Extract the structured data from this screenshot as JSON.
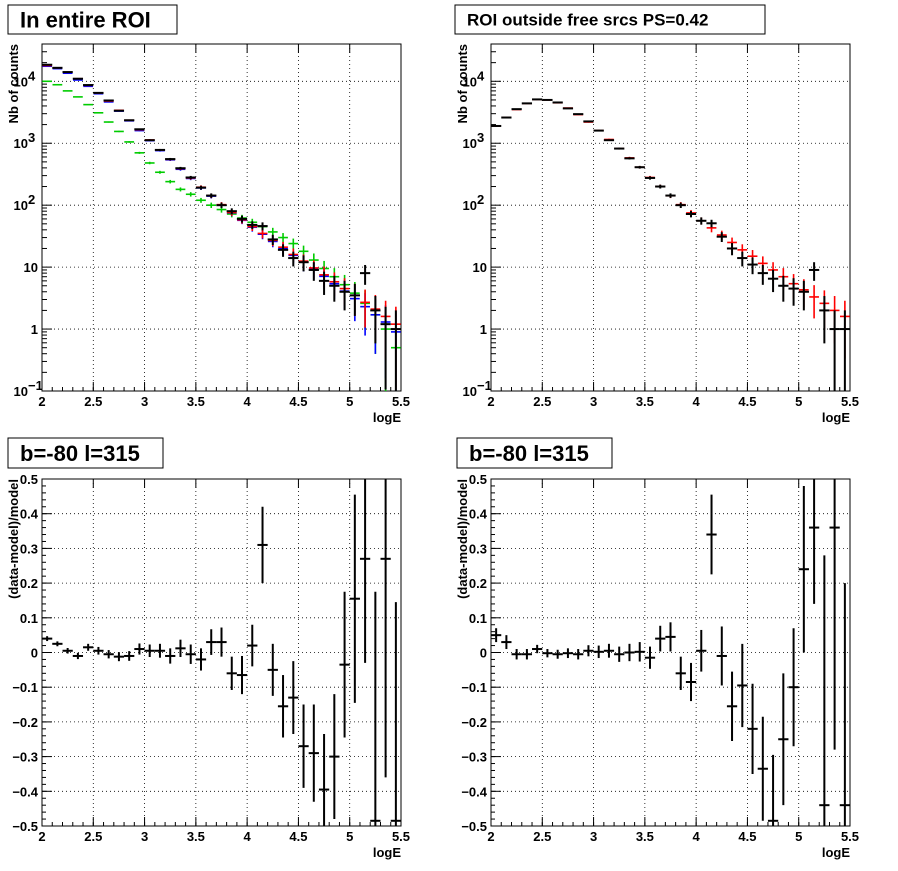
{
  "chart_data": [
    {
      "id": "roi-full",
      "type": "histogram-errorbars",
      "title": "In entire ROI",
      "xlabel": "logE",
      "ylabel": "Nb of counts",
      "xlim": [
        2,
        5.5
      ],
      "ylim": [
        0.1,
        40000
      ],
      "yscale": "log",
      "grid": true,
      "x_ticks": [
        "2",
        "2.5",
        "3",
        "3.5",
        "4",
        "4.5",
        "5",
        "5.5"
      ],
      "y_ticks": [
        {
          "v": 0.1,
          "label": "10",
          "exp": "−1"
        },
        {
          "v": 1,
          "label": "1",
          "exp": ""
        },
        {
          "v": 10,
          "label": "10",
          "exp": ""
        },
        {
          "v": 100,
          "label": "10",
          "exp": "2"
        },
        {
          "v": 1000,
          "label": "10",
          "exp": "3"
        },
        {
          "v": 10000,
          "label": "10",
          "exp": "4"
        }
      ],
      "x": [
        2.05,
        2.15,
        2.25,
        2.35,
        2.45,
        2.55,
        2.65,
        2.75,
        2.85,
        2.95,
        3.05,
        3.15,
        3.25,
        3.35,
        3.45,
        3.55,
        3.65,
        3.75,
        3.85,
        3.95,
        4.05,
        4.15,
        4.25,
        4.35,
        4.45,
        4.55,
        4.65,
        4.75,
        4.85,
        4.95,
        5.05,
        5.15,
        5.25,
        5.35,
        5.45
      ],
      "series": [
        {
          "color": "#00cc00",
          "style": "marker",
          "values": [
            10000,
            8800,
            7000,
            5600,
            4200,
            3100,
            2200,
            1550,
            1050,
            700,
            480,
            340,
            240,
            180,
            150,
            120,
            100,
            85,
            72,
            62,
            53,
            45,
            37,
            30,
            24,
            18,
            13,
            9.5,
            7,
            5.2,
            3.8,
            2.6,
            1.7,
            1.0,
            0.5
          ]
        },
        {
          "color": "#0000ff",
          "style": "marker",
          "values": [
            17500,
            16000,
            13500,
            10500,
            8300,
            6300,
            4650,
            3300,
            2300,
            1600,
            1100,
            760,
            540,
            380,
            270,
            190,
            140,
            100,
            75,
            57,
            44,
            34,
            26,
            20,
            15.5,
            12,
            9.3,
            7.1,
            5.4,
            4.1,
            3.1,
            2.3,
            1.7,
            1.3,
            0.9
          ]
        },
        {
          "color": "#ff0000",
          "style": "marker",
          "values": [
            18000,
            16500,
            14000,
            11000,
            8600,
            6500,
            4800,
            3400,
            2350,
            1650,
            1130,
            780,
            550,
            390,
            275,
            195,
            142,
            102,
            76,
            58,
            45,
            35,
            27,
            21,
            16,
            12.5,
            9.7,
            7.5,
            5.8,
            4.5,
            3.5,
            2.7,
            2.1,
            1.6,
            1.2
          ]
        },
        {
          "color": "#000000",
          "style": "points",
          "values": [
            18500,
            16500,
            14100,
            11000,
            8700,
            6500,
            4900,
            3350,
            2350,
            1680,
            1120,
            780,
            555,
            395,
            280,
            192,
            143,
            100,
            80,
            60,
            48,
            46,
            28,
            19,
            14,
            12,
            9,
            6,
            5,
            4,
            3.5,
            8,
            2,
            1.2,
            1.0
          ]
        }
      ]
    },
    {
      "id": "roi-outside",
      "type": "histogram-errorbars",
      "title": "ROI outside free srcs PS=0.42",
      "xlabel": "logE",
      "ylabel": "Nb of counts",
      "xlim": [
        2,
        5.5
      ],
      "ylim": [
        0.1,
        40000
      ],
      "yscale": "log",
      "grid": true,
      "x_ticks": [
        "2",
        "2.5",
        "3",
        "3.5",
        "4",
        "4.5",
        "5",
        "5.5"
      ],
      "y_ticks": [
        {
          "v": 0.1,
          "label": "10",
          "exp": "−1"
        },
        {
          "v": 1,
          "label": "1",
          "exp": ""
        },
        {
          "v": 10,
          "label": "10",
          "exp": ""
        },
        {
          "v": 100,
          "label": "10",
          "exp": "2"
        },
        {
          "v": 1000,
          "label": "10",
          "exp": "3"
        },
        {
          "v": 10000,
          "label": "10",
          "exp": "4"
        }
      ],
      "x": [
        2.05,
        2.15,
        2.25,
        2.35,
        2.45,
        2.55,
        2.65,
        2.75,
        2.85,
        2.95,
        3.05,
        3.15,
        3.25,
        3.35,
        3.45,
        3.55,
        3.65,
        3.75,
        3.85,
        3.95,
        4.05,
        4.15,
        4.25,
        4.35,
        4.45,
        4.55,
        4.65,
        4.75,
        4.85,
        4.95,
        5.05,
        5.15,
        5.25,
        5.35,
        5.45
      ],
      "series": [
        {
          "color": "#ff0000",
          "style": "marker",
          "values": [
            1900,
            2600,
            3500,
            4400,
            5100,
            5000,
            4500,
            3700,
            2900,
            2200,
            1600,
            1150,
            820,
            580,
            410,
            280,
            200,
            142,
            102,
            75,
            56,
            43,
            33,
            25,
            19,
            15,
            11.5,
            9,
            7,
            5.4,
            4.3,
            3.3,
            2.6,
            2.0,
            1.6
          ]
        },
        {
          "color": "#000000",
          "style": "points",
          "values": [
            1900,
            2600,
            3550,
            4400,
            5100,
            5000,
            4550,
            3650,
            2950,
            2250,
            1600,
            1120,
            820,
            570,
            410,
            275,
            200,
            143,
            100,
            72,
            56,
            51,
            31,
            20,
            14,
            11,
            8,
            6.5,
            5,
            4.5,
            4,
            9,
            2,
            1.0,
            1.0
          ]
        }
      ]
    },
    {
      "id": "resid-full",
      "type": "residuals",
      "title": "b=-80 l=315",
      "xlabel": "logE",
      "ylabel": "(data-model)/model",
      "xlim": [
        2,
        5.5
      ],
      "ylim": [
        -0.5,
        0.5
      ],
      "grid": true,
      "x_ticks": [
        "2",
        "2.5",
        "3",
        "3.5",
        "4",
        "4.5",
        "5",
        "5.5"
      ],
      "y_ticks": [
        "−0.5",
        "−0.4",
        "−0.3",
        "−0.2",
        "−0.1",
        "0",
        "0.1",
        "0.2",
        "0.3",
        "0.4",
        "0.5"
      ],
      "x": [
        2.05,
        2.15,
        2.25,
        2.35,
        2.45,
        2.55,
        2.65,
        2.75,
        2.85,
        2.95,
        3.05,
        3.15,
        3.25,
        3.35,
        3.45,
        3.55,
        3.65,
        3.75,
        3.85,
        3.95,
        4.05,
        4.15,
        4.25,
        4.35,
        4.45,
        4.55,
        4.65,
        4.75,
        4.85,
        4.95,
        5.05,
        5.15,
        5.25,
        5.35,
        5.45
      ],
      "values": [
        0.04,
        0.025,
        0.005,
        -0.01,
        0.015,
        0.005,
        -0.005,
        -0.012,
        -0.01,
        0.01,
        0.005,
        0.005,
        -0.01,
        0.012,
        -0.005,
        -0.02,
        0.03,
        0.03,
        -0.06,
        -0.065,
        0.02,
        0.31,
        -0.05,
        -0.155,
        -0.13,
        -0.27,
        -0.29,
        -0.395,
        -0.3,
        -0.035,
        0.155,
        0.27,
        -0.485,
        0.27,
        -0.485
      ],
      "errors": [
        0.007,
        0.007,
        0.008,
        0.009,
        0.01,
        0.011,
        0.012,
        0.013,
        0.014,
        0.016,
        0.018,
        0.02,
        0.022,
        0.025,
        0.028,
        0.032,
        0.037,
        0.042,
        0.048,
        0.055,
        0.06,
        0.11,
        0.075,
        0.09,
        0.105,
        0.12,
        0.14,
        0.16,
        0.18,
        0.21,
        0.3,
        0.3,
        0.66,
        0.63,
        0.63
      ]
    },
    {
      "id": "resid-outside",
      "type": "residuals",
      "title": "b=-80 l=315",
      "xlabel": "logE",
      "ylabel": "(data-model)/model",
      "xlim": [
        2,
        5.5
      ],
      "ylim": [
        -0.5,
        0.5
      ],
      "grid": true,
      "x_ticks": [
        "2",
        "2.5",
        "3",
        "3.5",
        "4",
        "4.5",
        "5",
        "5.5"
      ],
      "y_ticks": [
        "−0.5",
        "−0.4",
        "−0.3",
        "−0.2",
        "−0.1",
        "0",
        "0.1",
        "0.2",
        "0.3",
        "0.4",
        "0.5"
      ],
      "x": [
        2.05,
        2.15,
        2.25,
        2.35,
        2.45,
        2.55,
        2.65,
        2.75,
        2.85,
        2.95,
        3.05,
        3.15,
        3.25,
        3.35,
        3.45,
        3.55,
        3.65,
        3.75,
        3.85,
        3.95,
        4.05,
        4.15,
        4.25,
        4.35,
        4.45,
        4.55,
        4.65,
        4.75,
        4.85,
        4.95,
        5.05,
        5.15,
        5.25,
        5.35,
        5.45
      ],
      "values": [
        0.05,
        0.03,
        -0.005,
        -0.005,
        0.01,
        -0.002,
        -0.005,
        -0.002,
        -0.005,
        0.005,
        0.002,
        0.005,
        -0.005,
        0.0,
        0.002,
        -0.015,
        0.04,
        0.045,
        -0.06,
        -0.085,
        0.005,
        0.34,
        -0.01,
        -0.155,
        -0.095,
        -0.22,
        -0.335,
        -0.485,
        -0.25,
        -0.1,
        0.24,
        0.36,
        -0.44,
        0.36,
        -0.44
      ],
      "errors": [
        0.02,
        0.02,
        0.015,
        0.015,
        0.012,
        0.012,
        0.013,
        0.014,
        0.015,
        0.016,
        0.018,
        0.02,
        0.022,
        0.025,
        0.028,
        0.032,
        0.037,
        0.042,
        0.048,
        0.055,
        0.06,
        0.115,
        0.085,
        0.1,
        0.12,
        0.13,
        0.15,
        0.19,
        0.19,
        0.17,
        0.24,
        0.22,
        0.72,
        0.64,
        0.64
      ]
    }
  ]
}
